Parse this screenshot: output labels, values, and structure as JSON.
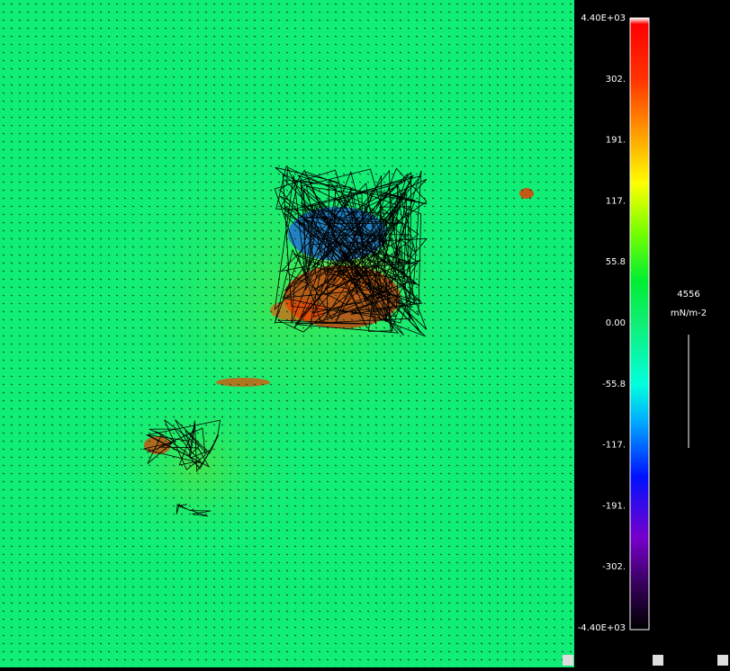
{
  "colorbar": {
    "ticks": [
      "4.40E+03",
      "302.",
      "191.",
      "117.",
      "55.8",
      "0.00",
      "-55.8",
      "-117.",
      "-191.",
      "-302.",
      "-4.40E+03"
    ]
  },
  "vector_scale": {
    "value": "4556",
    "unit": "mN/m-2"
  }
}
